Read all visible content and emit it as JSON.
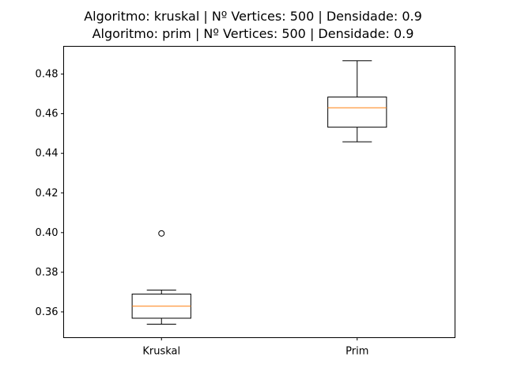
{
  "chart_data": {
    "type": "box",
    "title_lines": [
      "Algoritmo: kruskal | Nº Vertices: 500 | Densidade: 0.9",
      "Algoritmo: prim | Nº Vertices: 500 | Densidade: 0.9"
    ],
    "xlabel": "",
    "ylabel": "",
    "categories": [
      "Kruskal",
      "Prim"
    ],
    "ylim": [
      0.347,
      0.494
    ],
    "yticks": [
      0.36,
      0.38,
      0.4,
      0.42,
      0.44,
      0.46,
      0.48
    ],
    "ytick_labels": [
      "0.36",
      "0.38",
      "0.40",
      "0.42",
      "0.44",
      "0.46",
      "0.48"
    ],
    "grid": false,
    "boxes": [
      {
        "whisker_low": 0.3538,
        "q1": 0.3568,
        "median": 0.3629,
        "q3": 0.369,
        "whisker_high": 0.371,
        "outliers": [
          0.3996
        ]
      },
      {
        "whisker_low": 0.4458,
        "q1": 0.4532,
        "median": 0.463,
        "q3": 0.4684,
        "whisker_high": 0.4867,
        "outliers": []
      }
    ],
    "colors": {
      "box": "#000000",
      "median": "#ff7f0e",
      "outlier": "#000000"
    }
  }
}
